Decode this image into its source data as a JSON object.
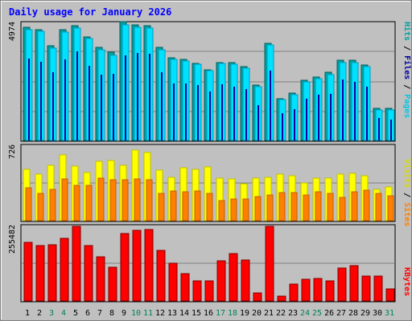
{
  "title": "Daily usage for January 2026",
  "colors": {
    "background": "#c0c0c0",
    "title": "#0000ff",
    "pages": "#00e0ff",
    "pages_edge": "#00a0c0",
    "hits": "#00a0a0",
    "hits_edge": "#006060",
    "files": "#0000a0",
    "visits": "#ffff00",
    "visits_edge": "#c0c000",
    "sites": "#ff8000",
    "sites_edge": "#c06000",
    "kbytes": "#ff0000",
    "kbytes_edge": "#800000",
    "weekend_label": "#00805c"
  },
  "chart_data": [
    {
      "type": "bar",
      "title": "Daily usage for January 2026",
      "scale_max_label": "4974",
      "ylim": [
        0,
        4974
      ],
      "legend": [
        "Pages",
        "Files",
        "Hits"
      ],
      "categories": [
        "1",
        "2",
        "3",
        "4",
        "5",
        "6",
        "7",
        "8",
        "9",
        "10",
        "11",
        "12",
        "13",
        "14",
        "15",
        "16",
        "17",
        "18",
        "19",
        "20",
        "21",
        "22",
        "23",
        "24",
        "25",
        "26",
        "27",
        "28",
        "29",
        "30",
        "31"
      ],
      "weekend_days": [
        "3",
        "4",
        "10",
        "11",
        "17",
        "18",
        "24",
        "25",
        "31"
      ],
      "series": [
        {
          "name": "Hits",
          "values": [
            4825,
            4743,
            4050,
            4720,
            4915,
            4435,
            3980,
            3760,
            5070,
            4935,
            4900,
            3995,
            3530,
            3450,
            3300,
            3030,
            3340,
            3320,
            3165,
            2360,
            4165,
            1800,
            2010,
            2580,
            2720,
            2910,
            3430,
            3415,
            3240,
            1375,
            1375
          ]
        },
        {
          "name": "Files",
          "values": [
            3500,
            3350,
            2900,
            3450,
            3800,
            3200,
            2800,
            2850,
            3650,
            3750,
            3700,
            2900,
            2450,
            2450,
            2350,
            2100,
            2400,
            2300,
            2200,
            1500,
            3000,
            1150,
            1350,
            1800,
            1950,
            2000,
            2600,
            2500,
            2300,
            950,
            900
          ]
        },
        {
          "name": "Pages",
          "values": [
            4735,
            4650,
            3940,
            4640,
            4815,
            4350,
            3870,
            3620,
            4950,
            4850,
            4815,
            3880,
            3450,
            3380,
            3260,
            2975,
            3290,
            3250,
            3100,
            2290,
            4080,
            1750,
            1960,
            2510,
            2640,
            2830,
            3340,
            3320,
            3150,
            1310,
            1320
          ]
        }
      ]
    },
    {
      "type": "bar",
      "scale_max_label": "726",
      "ylim": [
        0,
        726
      ],
      "legend": [
        "Sites",
        "Visits"
      ],
      "categories": [
        "1",
        "2",
        "3",
        "4",
        "5",
        "6",
        "7",
        "8",
        "9",
        "10",
        "11",
        "12",
        "13",
        "14",
        "15",
        "16",
        "17",
        "18",
        "19",
        "20",
        "21",
        "22",
        "23",
        "24",
        "25",
        "26",
        "27",
        "28",
        "29",
        "30",
        "31"
      ],
      "series": [
        {
          "name": "Visits",
          "values": [
            505,
            455,
            545,
            650,
            535,
            475,
            585,
            590,
            545,
            695,
            670,
            500,
            430,
            520,
            505,
            525,
            415,
            410,
            365,
            415,
            430,
            455,
            445,
            370,
            420,
            415,
            455,
            465,
            440,
            305,
            330
          ]
        },
        {
          "name": "Sites",
          "values": [
            320,
            270,
            310,
            410,
            350,
            350,
            415,
            405,
            400,
            410,
            400,
            270,
            290,
            285,
            290,
            270,
            195,
            210,
            215,
            240,
            250,
            275,
            275,
            255,
            285,
            265,
            230,
            285,
            300,
            270,
            245
          ]
        }
      ]
    },
    {
      "type": "bar",
      "scale_max_label": "255482",
      "ylim": [
        0,
        255482
      ],
      "legend": [
        "KBytes"
      ],
      "categories": [
        "1",
        "2",
        "3",
        "4",
        "5",
        "6",
        "7",
        "8",
        "9",
        "10",
        "11",
        "12",
        "13",
        "14",
        "15",
        "16",
        "17",
        "18",
        "19",
        "20",
        "21",
        "22",
        "23",
        "24",
        "25",
        "26",
        "27",
        "28",
        "29",
        "30",
        "31"
      ],
      "series": [
        {
          "name": "KBytes",
          "values": [
            203000,
            192000,
            195000,
            216000,
            258000,
            191000,
            153000,
            117000,
            234000,
            243000,
            247000,
            176000,
            130000,
            95000,
            70000,
            70000,
            138000,
            165000,
            141000,
            29000,
            258000,
            18000,
            59000,
            75000,
            77000,
            70000,
            115000,
            123000,
            86000,
            85000,
            43000
          ]
        }
      ]
    }
  ]
}
